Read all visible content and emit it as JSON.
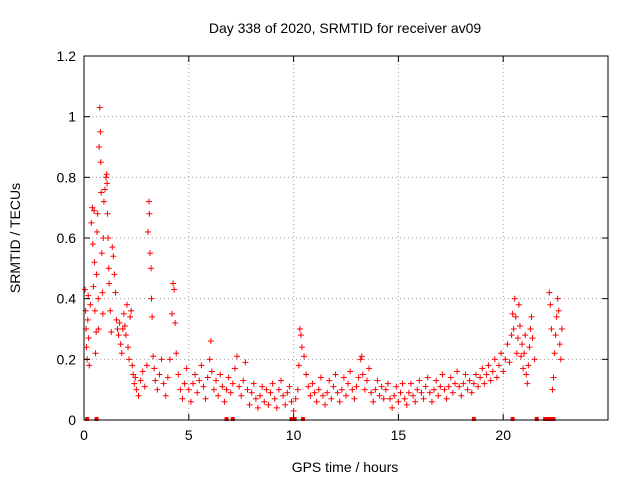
{
  "chart_data": {
    "type": "scatter",
    "title": "Day 338 of 2020, SRMTID for receiver av09",
    "xlabel": "GPS time / hours",
    "ylabel": "SRMTID / TECUs",
    "xlim": [
      0,
      25
    ],
    "ylim": [
      0,
      1.2
    ],
    "xticks": [
      0,
      5,
      10,
      15,
      20
    ],
    "xtick_labels": [
      "0",
      "5",
      "10",
      "15",
      "20"
    ],
    "yticks": [
      0,
      0.2,
      0.4,
      0.6,
      0.8,
      1.0,
      1.2
    ],
    "ytick_labels": [
      "0",
      "0.2",
      "0.4",
      "0.6",
      "0.8",
      "1",
      "1.2"
    ],
    "grid": true,
    "marker": "+",
    "color": "#ff0000",
    "series": [
      {
        "name": "av09",
        "points": [
          [
            0.05,
            0.43
          ],
          [
            0.08,
            0.36
          ],
          [
            0.1,
            0.3
          ],
          [
            0.12,
            0.24
          ],
          [
            0.15,
            0.2
          ],
          [
            0.18,
            0.33
          ],
          [
            0.2,
            0.41
          ],
          [
            0.22,
            0.27
          ],
          [
            0.25,
            0.18
          ],
          [
            0.3,
            0.38
          ],
          [
            0.35,
            0.65
          ],
          [
            0.4,
            0.7
          ],
          [
            0.42,
            0.58
          ],
          [
            0.45,
            0.44
          ],
          [
            0.48,
            0.69
          ],
          [
            0.5,
            0.52
          ],
          [
            0.52,
            0.36
          ],
          [
            0.55,
            0.22
          ],
          [
            0.58,
            0.29
          ],
          [
            0.6,
            0.48
          ],
          [
            0.62,
            0.62
          ],
          [
            0.65,
            0.68
          ],
          [
            0.68,
            0.4
          ],
          [
            0.7,
            0.3
          ],
          [
            0.72,
            0.9
          ],
          [
            0.75,
            1.03
          ],
          [
            0.78,
            0.95
          ],
          [
            0.8,
            0.85
          ],
          [
            0.82,
            0.75
          ],
          [
            0.85,
            0.55
          ],
          [
            0.88,
            0.42
          ],
          [
            0.9,
            0.35
          ],
          [
            0.92,
            0.6
          ],
          [
            0.95,
            0.72
          ],
          [
            1.0,
            0.76
          ],
          [
            1.05,
            0.8
          ],
          [
            1.08,
            0.81
          ],
          [
            1.1,
            0.78
          ],
          [
            1.12,
            0.68
          ],
          [
            1.15,
            0.6
          ],
          [
            1.18,
            0.5
          ],
          [
            1.2,
            0.45
          ],
          [
            1.25,
            0.36
          ],
          [
            1.3,
            0.29
          ],
          [
            1.35,
            0.57
          ],
          [
            1.4,
            0.54
          ],
          [
            1.45,
            0.48
          ],
          [
            1.5,
            0.42
          ],
          [
            1.55,
            0.33
          ],
          [
            1.6,
            0.3
          ],
          [
            1.65,
            0.28
          ],
          [
            1.7,
            0.32
          ],
          [
            1.75,
            0.25
          ],
          [
            1.8,
            0.22
          ],
          [
            1.85,
            0.3
          ],
          [
            1.9,
            0.35
          ],
          [
            1.95,
            0.31
          ],
          [
            2.0,
            0.28
          ],
          [
            2.05,
            0.38
          ],
          [
            2.1,
            0.24
          ],
          [
            2.15,
            0.2
          ],
          [
            2.2,
            0.34
          ],
          [
            2.25,
            0.36
          ],
          [
            2.3,
            0.18
          ],
          [
            2.35,
            0.15
          ],
          [
            2.4,
            0.12
          ],
          [
            2.45,
            0.14
          ],
          [
            2.5,
            0.1
          ],
          [
            2.6,
            0.08
          ],
          [
            2.7,
            0.13
          ],
          [
            2.8,
            0.16
          ],
          [
            2.9,
            0.11
          ],
          [
            3.0,
            0.18
          ],
          [
            3.05,
            0.62
          ],
          [
            3.1,
            0.72
          ],
          [
            3.12,
            0.68
          ],
          [
            3.15,
            0.55
          ],
          [
            3.2,
            0.5
          ],
          [
            3.22,
            0.4
          ],
          [
            3.25,
            0.34
          ],
          [
            3.3,
            0.21
          ],
          [
            3.35,
            0.17
          ],
          [
            3.4,
            0.13
          ],
          [
            3.5,
            0.1
          ],
          [
            3.6,
            0.15
          ],
          [
            3.7,
            0.2
          ],
          [
            3.8,
            0.12
          ],
          [
            3.9,
            0.08
          ],
          [
            4.0,
            0.14
          ],
          [
            4.1,
            0.2
          ],
          [
            4.2,
            0.35
          ],
          [
            4.25,
            0.45
          ],
          [
            4.3,
            0.43
          ],
          [
            4.35,
            0.32
          ],
          [
            4.4,
            0.22
          ],
          [
            4.5,
            0.15
          ],
          [
            4.6,
            0.1
          ],
          [
            4.7,
            0.07
          ],
          [
            4.8,
            0.12
          ],
          [
            4.9,
            0.17
          ],
          [
            5.0,
            0.1
          ],
          [
            5.1,
            0.06
          ],
          [
            5.2,
            0.12
          ],
          [
            5.3,
            0.15
          ],
          [
            5.4,
            0.09
          ],
          [
            5.5,
            0.13
          ],
          [
            5.6,
            0.18
          ],
          [
            5.7,
            0.11
          ],
          [
            5.8,
            0.07
          ],
          [
            5.9,
            0.14
          ],
          [
            6.0,
            0.2
          ],
          [
            6.05,
            0.26
          ],
          [
            6.1,
            0.16
          ],
          [
            6.2,
            0.1
          ],
          [
            6.3,
            0.13
          ],
          [
            6.4,
            0.08
          ],
          [
            6.5,
            0.15
          ],
          [
            6.6,
            0.11
          ],
          [
            6.7,
            0.06
          ],
          [
            6.8,
            0.1
          ],
          [
            6.9,
            0.14
          ],
          [
            7.0,
            0.09
          ],
          [
            7.1,
            0.12
          ],
          [
            7.2,
            0.17
          ],
          [
            7.3,
            0.21
          ],
          [
            7.4,
            0.11
          ],
          [
            7.5,
            0.08
          ],
          [
            7.6,
            0.13
          ],
          [
            7.7,
            0.19
          ],
          [
            7.8,
            0.1
          ],
          [
            7.9,
            0.05
          ],
          [
            8.0,
            0.09
          ],
          [
            8.1,
            0.12
          ],
          [
            8.2,
            0.07
          ],
          [
            8.3,
            0.04
          ],
          [
            8.4,
            0.08
          ],
          [
            8.5,
            0.11
          ],
          [
            8.6,
            0.06
          ],
          [
            8.7,
            0.1
          ],
          [
            8.8,
            0.05
          ],
          [
            8.9,
            0.09
          ],
          [
            9.0,
            0.12
          ],
          [
            9.1,
            0.07
          ],
          [
            9.2,
            0.04
          ],
          [
            9.3,
            0.1
          ],
          [
            9.4,
            0.13
          ],
          [
            9.5,
            0.08
          ],
          [
            9.6,
            0.05
          ],
          [
            9.7,
            0.09
          ],
          [
            9.8,
            0.11
          ],
          [
            9.9,
            0.06
          ],
          [
            10.0,
            0.03
          ],
          [
            10.1,
            0.07
          ],
          [
            10.2,
            0.1
          ],
          [
            10.25,
            0.18
          ],
          [
            10.3,
            0.3
          ],
          [
            10.35,
            0.28
          ],
          [
            10.4,
            0.24
          ],
          [
            10.5,
            0.21
          ],
          [
            10.6,
            0.15
          ],
          [
            10.7,
            0.11
          ],
          [
            10.8,
            0.08
          ],
          [
            10.9,
            0.12
          ],
          [
            11.0,
            0.09
          ],
          [
            11.1,
            0.06
          ],
          [
            11.2,
            0.1
          ],
          [
            11.3,
            0.14
          ],
          [
            11.4,
            0.08
          ],
          [
            11.5,
            0.05
          ],
          [
            11.6,
            0.09
          ],
          [
            11.7,
            0.13
          ],
          [
            11.8,
            0.07
          ],
          [
            11.9,
            0.11
          ],
          [
            12.0,
            0.15
          ],
          [
            12.1,
            0.09
          ],
          [
            12.2,
            0.06
          ],
          [
            12.3,
            0.1
          ],
          [
            12.4,
            0.14
          ],
          [
            12.5,
            0.08
          ],
          [
            12.6,
            0.12
          ],
          [
            12.7,
            0.16
          ],
          [
            12.8,
            0.1
          ],
          [
            12.9,
            0.07
          ],
          [
            13.0,
            0.11
          ],
          [
            13.1,
            0.14
          ],
          [
            13.2,
            0.2
          ],
          [
            13.25,
            0.21
          ],
          [
            13.3,
            0.15
          ],
          [
            13.4,
            0.1
          ],
          [
            13.5,
            0.13
          ],
          [
            13.6,
            0.17
          ],
          [
            13.7,
            0.09
          ],
          [
            13.8,
            0.06
          ],
          [
            13.9,
            0.1
          ],
          [
            14.0,
            0.13
          ],
          [
            14.1,
            0.08
          ],
          [
            14.2,
            0.11
          ],
          [
            14.3,
            0.07
          ],
          [
            14.4,
            0.1
          ],
          [
            14.5,
            0.12
          ],
          [
            14.6,
            0.07
          ],
          [
            14.7,
            0.04
          ],
          [
            14.8,
            0.08
          ],
          [
            14.9,
            0.11
          ],
          [
            15.0,
            0.06
          ],
          [
            15.1,
            0.09
          ],
          [
            15.2,
            0.12
          ],
          [
            15.3,
            0.07
          ],
          [
            15.4,
            0.05
          ],
          [
            15.5,
            0.09
          ],
          [
            15.6,
            0.12
          ],
          [
            15.7,
            0.08
          ],
          [
            15.8,
            0.06
          ],
          [
            15.9,
            0.1
          ],
          [
            16.0,
            0.13
          ],
          [
            16.1,
            0.09
          ],
          [
            16.2,
            0.07
          ],
          [
            16.3,
            0.11
          ],
          [
            16.4,
            0.14
          ],
          [
            16.5,
            0.09
          ],
          [
            16.6,
            0.06
          ],
          [
            16.7,
            0.1
          ],
          [
            16.8,
            0.13
          ],
          [
            16.9,
            0.08
          ],
          [
            17.0,
            0.11
          ],
          [
            17.1,
            0.15
          ],
          [
            17.2,
            0.1
          ],
          [
            17.3,
            0.07
          ],
          [
            17.4,
            0.11
          ],
          [
            17.5,
            0.14
          ],
          [
            17.6,
            0.09
          ],
          [
            17.7,
            0.12
          ],
          [
            17.8,
            0.16
          ],
          [
            17.9,
            0.11
          ],
          [
            18.0,
            0.08
          ],
          [
            18.1,
            0.12
          ],
          [
            18.2,
            0.15
          ],
          [
            18.3,
            0.1
          ],
          [
            18.4,
            0.13
          ],
          [
            18.5,
            0.09
          ],
          [
            18.6,
            0.12
          ],
          [
            18.7,
            0.15
          ],
          [
            18.8,
            0.11
          ],
          [
            18.9,
            0.14
          ],
          [
            19.0,
            0.17
          ],
          [
            19.1,
            0.12
          ],
          [
            19.2,
            0.15
          ],
          [
            19.3,
            0.18
          ],
          [
            19.4,
            0.13
          ],
          [
            19.5,
            0.16
          ],
          [
            19.6,
            0.2
          ],
          [
            19.7,
            0.14
          ],
          [
            19.8,
            0.18
          ],
          [
            19.9,
            0.22
          ],
          [
            20.0,
            0.16
          ],
          [
            20.1,
            0.2
          ],
          [
            20.2,
            0.25
          ],
          [
            20.3,
            0.19
          ],
          [
            20.4,
            0.28
          ],
          [
            20.45,
            0.35
          ],
          [
            20.5,
            0.3
          ],
          [
            20.55,
            0.4
          ],
          [
            20.6,
            0.34
          ],
          [
            20.65,
            0.22
          ],
          [
            20.7,
            0.27
          ],
          [
            20.75,
            0.38
          ],
          [
            20.8,
            0.31
          ],
          [
            20.85,
            0.21
          ],
          [
            20.9,
            0.25
          ],
          [
            20.95,
            0.17
          ],
          [
            21.0,
            0.22
          ],
          [
            21.05,
            0.28
          ],
          [
            21.1,
            0.15
          ],
          [
            21.15,
            0.12
          ],
          [
            21.2,
            0.18
          ],
          [
            21.25,
            0.24
          ],
          [
            21.3,
            0.3
          ],
          [
            21.35,
            0.34
          ],
          [
            21.4,
            0.27
          ],
          [
            21.5,
            0.2
          ],
          [
            22.2,
            0.42
          ],
          [
            22.25,
            0.38
          ],
          [
            22.3,
            0.3
          ],
          [
            22.35,
            0.1
          ],
          [
            22.4,
            0.14
          ],
          [
            22.45,
            0.22
          ],
          [
            22.5,
            0.28
          ],
          [
            22.55,
            0.34
          ],
          [
            22.6,
            0.4
          ],
          [
            22.65,
            0.36
          ],
          [
            22.7,
            0.25
          ],
          [
            22.75,
            0.2
          ],
          [
            22.8,
            0.3
          ]
        ]
      }
    ],
    "zero_markers_x": [
      0.15,
      0.6,
      6.8,
      7.1,
      9.9,
      10.05,
      10.45,
      18.6,
      20.45,
      21.6,
      22.0,
      22.15,
      22.3,
      22.4
    ]
  }
}
